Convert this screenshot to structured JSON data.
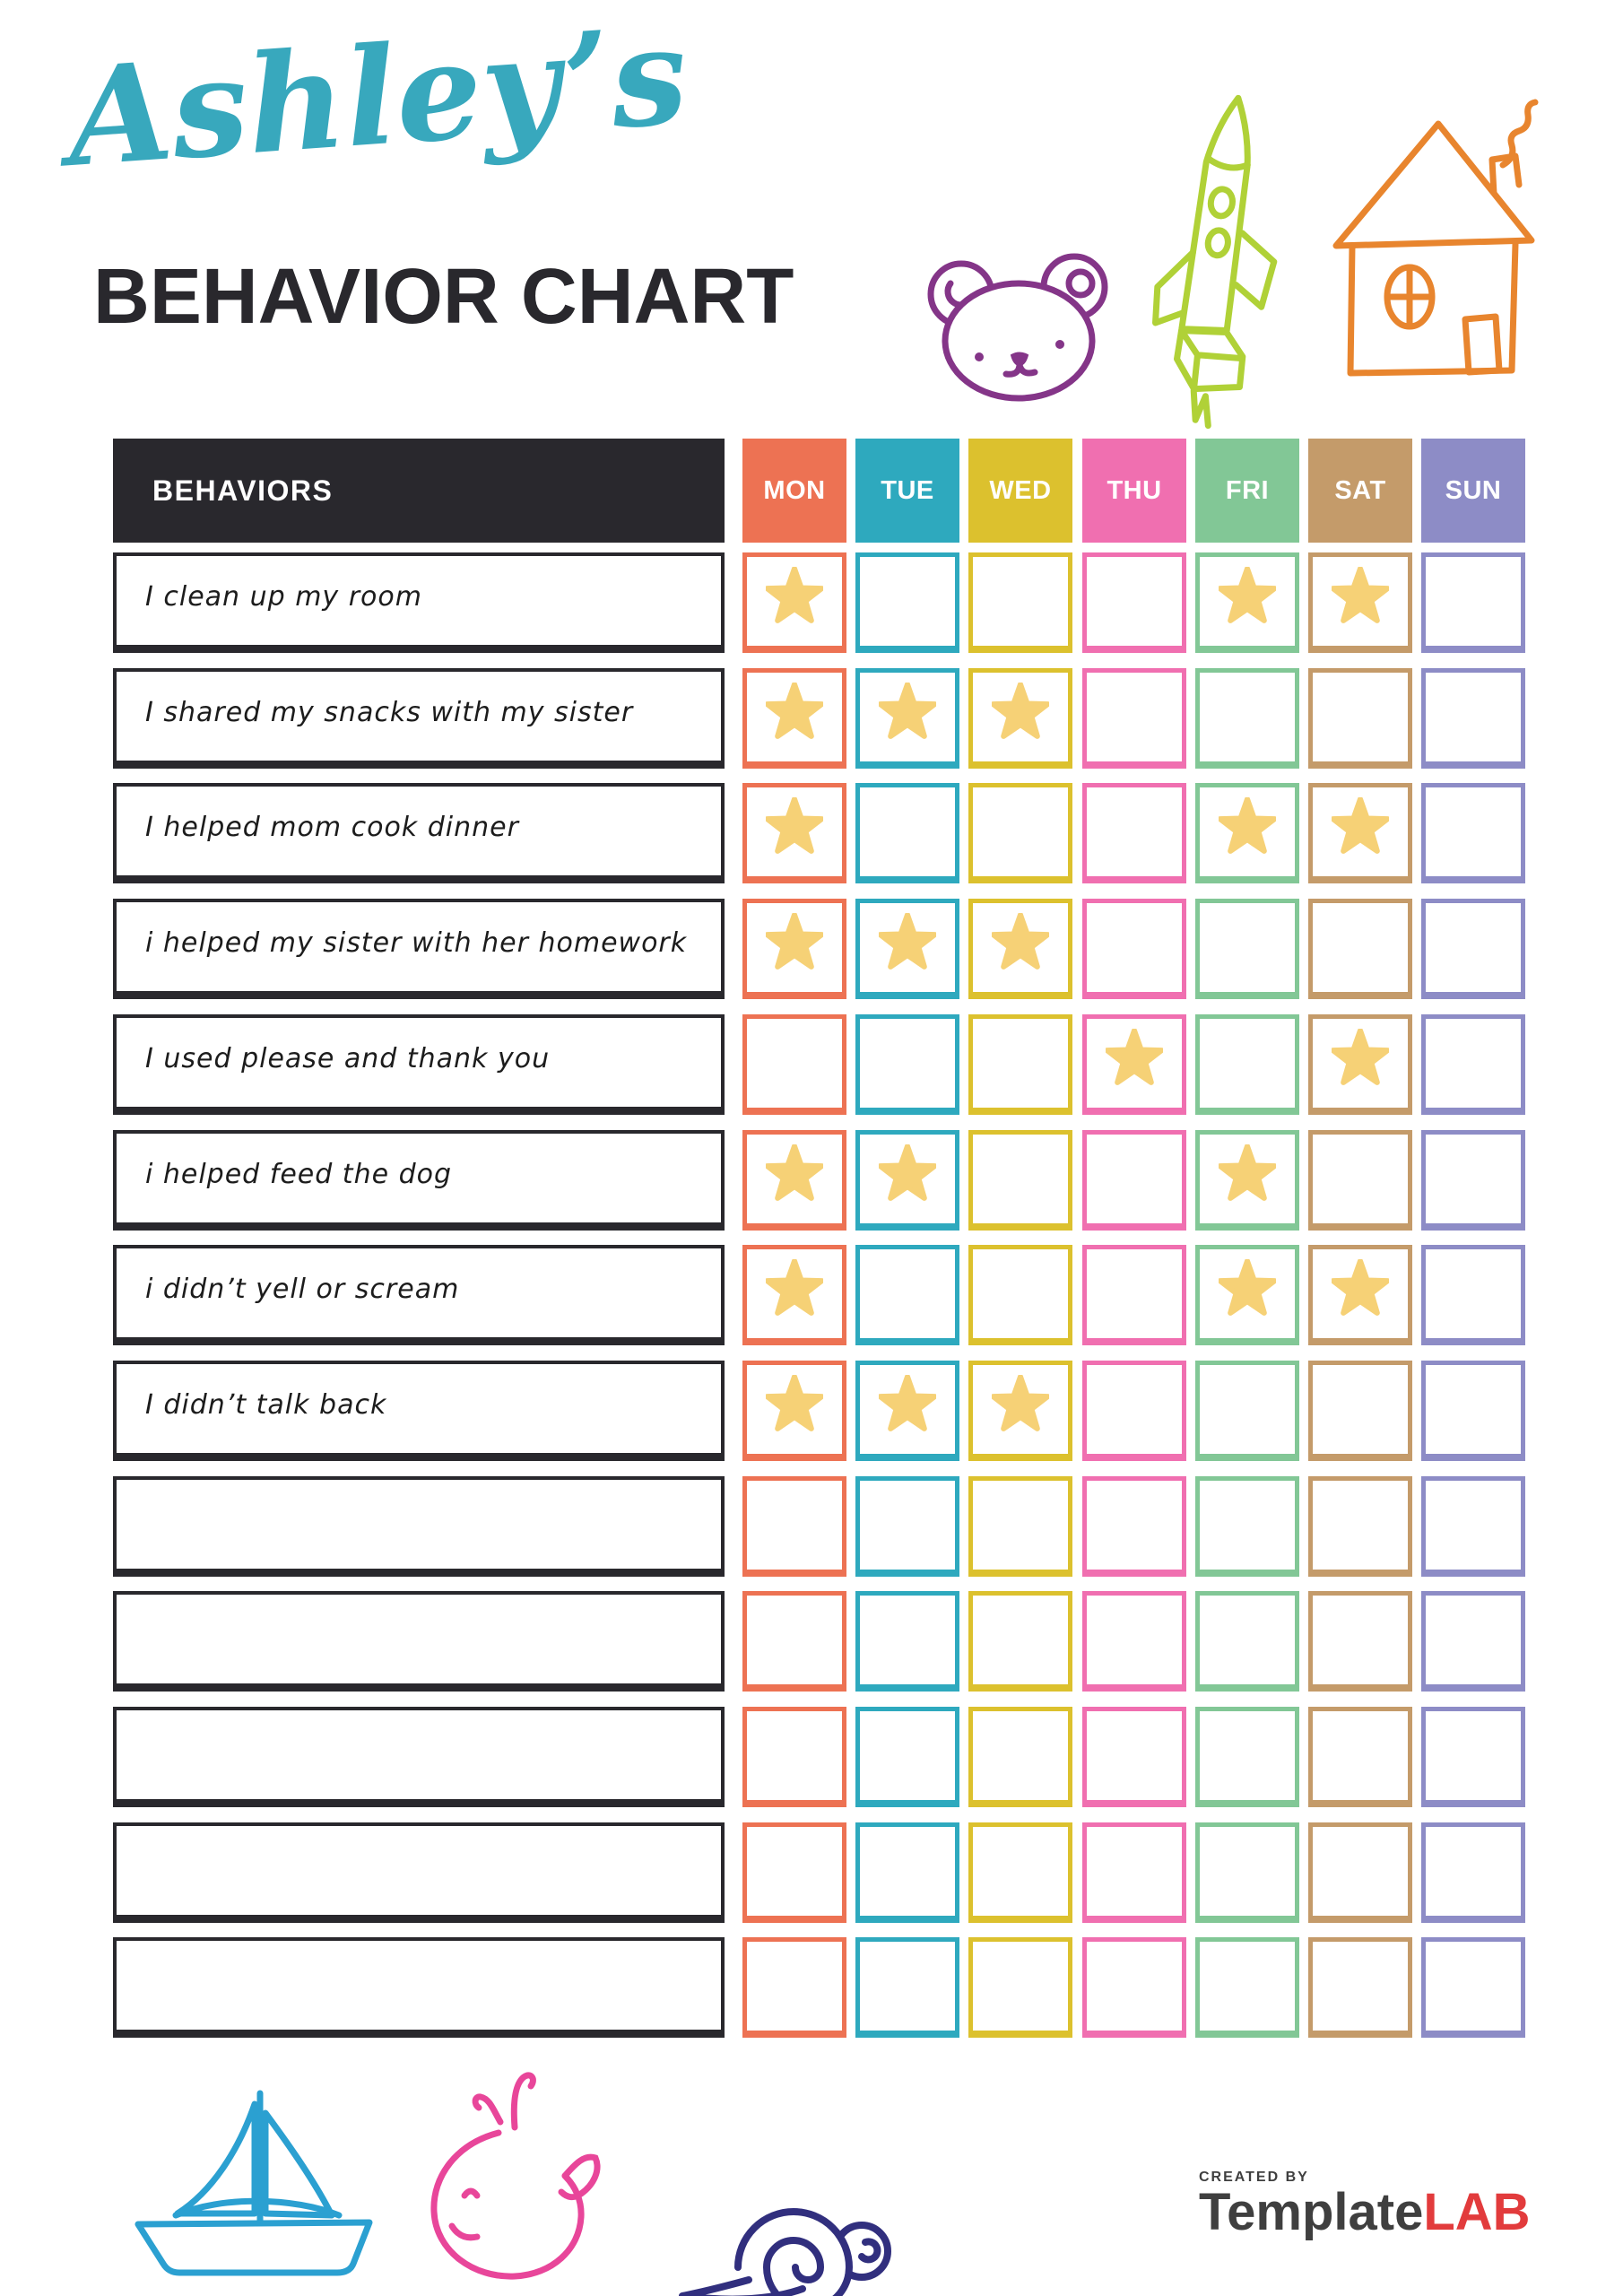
{
  "header": {
    "script_title": "Ashley’s",
    "main_title": "BEHAVIOR CHART"
  },
  "decorations": {
    "top_icons": [
      "bear-icon",
      "rocket-icon",
      "house-icon"
    ],
    "bottom_icons": [
      "sailboat-icon",
      "whale-icon",
      "snail-icon"
    ]
  },
  "table": {
    "behaviors_header": "BEHAVIORS",
    "days": [
      {
        "label": "MON",
        "color": "#ED7253"
      },
      {
        "label": "TUE",
        "color": "#2EA9BE"
      },
      {
        "label": "WED",
        "color": "#DCC12E"
      },
      {
        "label": "THU",
        "color": "#F06FB0"
      },
      {
        "label": "FRI",
        "color": "#82C796"
      },
      {
        "label": "SAT",
        "color": "#C49B6A"
      },
      {
        "label": "SUN",
        "color": "#8D8CC6"
      }
    ],
    "rows": [
      {
        "behavior": "I clean up my room",
        "stars": [
          "MON",
          "FRI",
          "SAT"
        ]
      },
      {
        "behavior": "I shared my snacks with my sister",
        "stars": [
          "MON",
          "TUE",
          "WED"
        ]
      },
      {
        "behavior": "I helped mom cook dinner",
        "stars": [
          "MON",
          "FRI",
          "SAT"
        ]
      },
      {
        "behavior": "i helped my sister with her homework",
        "stars": [
          "MON",
          "TUE",
          "WED"
        ]
      },
      {
        "behavior": "I used please and thank you",
        "stars": [
          "THU",
          "SAT"
        ]
      },
      {
        "behavior": "i helped feed the dog",
        "stars": [
          "MON",
          "TUE",
          "FRI"
        ]
      },
      {
        "behavior": "i didn’t yell or scream",
        "stars": [
          "MON",
          "FRI",
          "SAT"
        ]
      },
      {
        "behavior": "I didn’t talk back",
        "stars": [
          "MON",
          "TUE",
          "WED"
        ]
      },
      {
        "behavior": "",
        "stars": []
      },
      {
        "behavior": "",
        "stars": []
      },
      {
        "behavior": "",
        "stars": []
      },
      {
        "behavior": "",
        "stars": []
      },
      {
        "behavior": "",
        "stars": []
      }
    ]
  },
  "footer": {
    "created_by": "CREATED BY",
    "brand_primary": "Template",
    "brand_accent": "LAB"
  },
  "colors": {
    "title_script": "#38A8BD",
    "title_main": "#29282D",
    "header_bg": "#29282D",
    "header_text": "#FFFFFF",
    "row_border": "#29282D",
    "behavior_text": "#1C1C1C",
    "star_fill": "#F6D176",
    "bear": "#843588",
    "rocket": "#B0D137",
    "house": "#E8852E",
    "sailboat": "#2BA0D1",
    "whale": "#E8469A",
    "snail": "#312F7E",
    "logo_text": "#3F3F3F",
    "logo_accent": "#E23B3C"
  }
}
